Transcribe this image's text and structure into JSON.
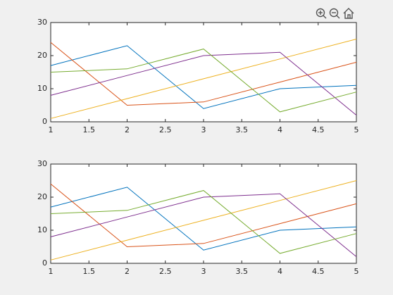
{
  "chart_data": [
    {
      "type": "line",
      "x": [
        1,
        2,
        3,
        4,
        5
      ],
      "xlim": [
        1,
        5
      ],
      "xticks": [
        1,
        1.5,
        2,
        2.5,
        3,
        3.5,
        4,
        4.5,
        5
      ],
      "ylim": [
        0,
        30
      ],
      "yticks": [
        0,
        10,
        20,
        30
      ],
      "series": [
        {
          "color": "#0072BD",
          "values": [
            17,
            23,
            4,
            10,
            11
          ]
        },
        {
          "color": "#D95319",
          "values": [
            24,
            5,
            6,
            12,
            18
          ]
        },
        {
          "color": "#EDB120",
          "values": [
            1,
            7,
            13,
            19,
            25
          ]
        },
        {
          "color": "#7E2F8E",
          "values": [
            8,
            14,
            20,
            21,
            2
          ]
        },
        {
          "color": "#77AC30",
          "values": [
            15,
            16,
            22,
            3,
            9
          ]
        }
      ]
    },
    {
      "type": "line",
      "x": [
        1,
        2,
        3,
        4,
        5
      ],
      "xlim": [
        1,
        5
      ],
      "xticks": [
        1,
        1.5,
        2,
        2.5,
        3,
        3.5,
        4,
        4.5,
        5
      ],
      "ylim": [
        0,
        30
      ],
      "yticks": [
        0,
        10,
        20,
        30
      ],
      "series": [
        {
          "color": "#0072BD",
          "values": [
            17,
            23,
            4,
            10,
            11
          ]
        },
        {
          "color": "#D95319",
          "values": [
            24,
            5,
            6,
            12,
            18
          ]
        },
        {
          "color": "#EDB120",
          "values": [
            1,
            7,
            13,
            19,
            25
          ]
        },
        {
          "color": "#7E2F8E",
          "values": [
            8,
            14,
            20,
            21,
            2
          ]
        },
        {
          "color": "#77AC30",
          "values": [
            15,
            16,
            22,
            3,
            9
          ]
        }
      ]
    }
  ]
}
